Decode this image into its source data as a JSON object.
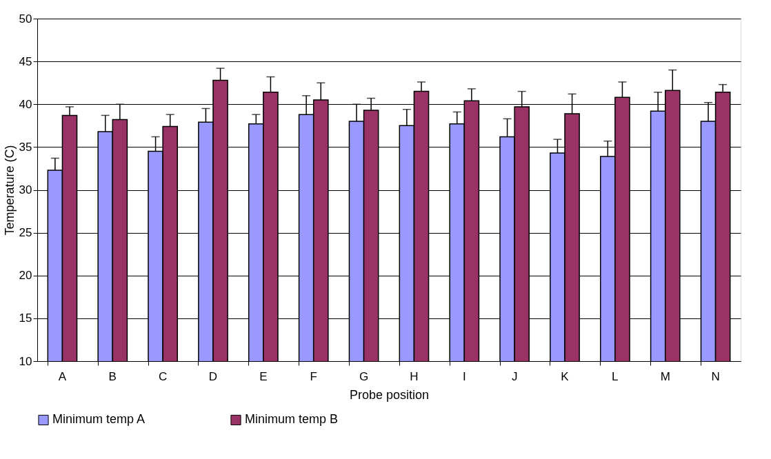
{
  "chart_data": {
    "type": "bar",
    "xlabel": "Probe position",
    "ylabel": "Temperature (C)",
    "categories": [
      "A",
      "B",
      "C",
      "D",
      "E",
      "F",
      "G",
      "H",
      "I",
      "J",
      "K",
      "L",
      "M",
      "N"
    ],
    "series": [
      {
        "name": "Minimum temp A",
        "color": "#9999ff",
        "values": [
          32.3,
          36.8,
          34.5,
          37.9,
          37.7,
          38.8,
          38.0,
          37.5,
          37.7,
          36.2,
          34.3,
          33.9,
          39.2,
          38.0
        ],
        "errors": [
          [
            32.3,
            33.7
          ],
          [
            36.8,
            38.7
          ],
          [
            34.5,
            36.2
          ],
          [
            37.9,
            39.5
          ],
          [
            37.7,
            38.8
          ],
          [
            38.8,
            41.0
          ],
          [
            38.0,
            40.0
          ],
          [
            37.5,
            39.4
          ],
          [
            37.7,
            39.1
          ],
          [
            36.2,
            38.3
          ],
          [
            34.3,
            35.9
          ],
          [
            33.9,
            35.7
          ],
          [
            39.2,
            41.4
          ],
          [
            38.0,
            40.2
          ]
        ]
      },
      {
        "name": "Minimum temp B",
        "color": "#993366",
        "values": [
          38.7,
          38.2,
          37.4,
          42.8,
          41.4,
          40.5,
          39.3,
          41.5,
          40.4,
          39.7,
          38.9,
          40.8,
          41.6,
          41.4
        ],
        "errors": [
          [
            38.7,
            39.7
          ],
          [
            38.2,
            40.0
          ],
          [
            37.4,
            38.8
          ],
          [
            42.8,
            44.2
          ],
          [
            41.4,
            43.2
          ],
          [
            40.5,
            42.5
          ],
          [
            39.3,
            40.7
          ],
          [
            41.5,
            42.6
          ],
          [
            40.4,
            41.8
          ],
          [
            39.7,
            41.5
          ],
          [
            38.9,
            41.2
          ],
          [
            40.8,
            42.6
          ],
          [
            41.6,
            44.0
          ],
          [
            41.4,
            42.3
          ]
        ]
      }
    ],
    "ylim": [
      10,
      50
    ],
    "yticks": [
      10,
      15,
      20,
      25,
      30,
      35,
      40,
      45,
      50
    ],
    "grid": "y",
    "legend": "bottom"
  }
}
